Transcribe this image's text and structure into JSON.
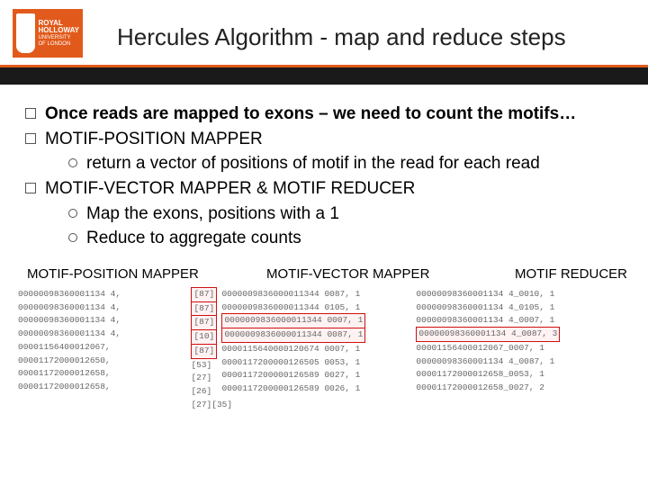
{
  "logo": {
    "line1": "ROYAL",
    "line2": "HOLLOWAY",
    "line3": "UNIVERSITY",
    "line4": "OF LONDON"
  },
  "title": "Hercules Algorithm - map and reduce steps",
  "bullets": {
    "b1": "Once reads are mapped to exons – we need to count the motifs…",
    "b2": "MOTIF-POSITION MAPPER",
    "b2s1": "return a vector of positions of motif in the read for each read",
    "b3": "MOTIF-VECTOR MAPPER & MOTIF REDUCER",
    "b3s1": "Map the exons, positions with a 1",
    "b3s2": "Reduce to aggregate counts"
  },
  "labels": {
    "l1": "MOTIF-POSITION MAPPER",
    "l2": "MOTIF-VECTOR MAPPER",
    "l3": "MOTIF REDUCER"
  },
  "col1": [
    "00000098360001134 4,",
    "00000098360001134 4,",
    "00000098360001134 4,",
    "00000098360001134 4,",
    "00001156400012067,",
    "00001172000012650,",
    "00001172000012658,",
    "00001172000012658,"
  ],
  "col1b": [
    "[87]",
    "[87]",
    "[87]",
    "[10]",
    "[87]",
    "[53]",
    "[27]",
    "[26]",
    "[27]"
  ],
  "col1b_last": "[35]",
  "col2": [
    "0000009836000011344  0087, 1",
    "0000009836000011344  0105, 1",
    "0000009836000011344  0007, 1",
    "0000009836000011344  0087, 1",
    "0000115640000120674  0007, 1",
    "0000117200000126505  0053, 1",
    "0000117200000126589  0027, 1",
    "0000117200000126589  0026, 1"
  ],
  "col3": [
    "00000098360001134 4_0010, 1",
    "00000098360001134 4_0105, 1",
    "00000098360001134 4_0007, 1",
    "00000098360001134 4_0087, 3",
    "00001156400012067_0007, 1",
    "00000098360001134 4_0087, 1",
    "00001172000012658_0053, 1",
    "00001172000012658_0027, 2"
  ],
  "colors": {
    "accent": "#e25a1b",
    "dark": "#1a1a1a",
    "red": "#d01010"
  }
}
